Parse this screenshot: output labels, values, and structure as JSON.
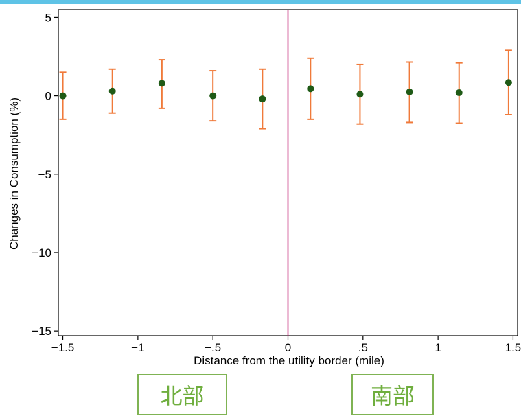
{
  "chart_data": {
    "type": "scatter",
    "title": "",
    "xlabel": "Distance from the utility border (mile)",
    "ylabel": "Changes in Consumption (%)",
    "xlim": [
      -1.53,
      1.53
    ],
    "ylim": [
      -15.3,
      5.5
    ],
    "xticks": [
      -1.5,
      -1,
      -0.5,
      0,
      0.5,
      1,
      1.5
    ],
    "xtick_labels": [
      "−1.5",
      "−1",
      "−.5",
      "0",
      ".5",
      "1",
      "1.5"
    ],
    "yticks": [
      5,
      0,
      -5,
      -10,
      -15
    ],
    "ytick_labels": [
      "5",
      "0",
      "−5",
      "−10",
      "−15"
    ],
    "vline_x": 0,
    "grid": false,
    "legend": "none",
    "colors": {
      "point": "#1f5a16",
      "error_bar": "#f07a3a",
      "vline": "#c21a6e",
      "axis": "#000000"
    },
    "points": [
      {
        "x": -1.5,
        "y": 0.0,
        "lo": -1.5,
        "hi": 1.5
      },
      {
        "x": -1.17,
        "y": 0.3,
        "lo": -1.1,
        "hi": 1.7
      },
      {
        "x": -0.84,
        "y": 0.8,
        "lo": -0.8,
        "hi": 2.3
      },
      {
        "x": -0.5,
        "y": 0.0,
        "lo": -1.6,
        "hi": 1.6
      },
      {
        "x": -0.17,
        "y": -0.2,
        "lo": -2.1,
        "hi": 1.7
      },
      {
        "x": 0.15,
        "y": 0.45,
        "lo": -1.5,
        "hi": 2.4
      },
      {
        "x": 0.48,
        "y": 0.1,
        "lo": -1.8,
        "hi": 2.0
      },
      {
        "x": 0.81,
        "y": 0.25,
        "lo": -1.7,
        "hi": 2.15
      },
      {
        "x": 1.14,
        "y": 0.2,
        "lo": -1.75,
        "hi": 2.1
      },
      {
        "x": 1.47,
        "y": 0.85,
        "lo": -1.2,
        "hi": 2.9
      }
    ]
  },
  "regions": {
    "north": "北部",
    "south": "南部"
  }
}
